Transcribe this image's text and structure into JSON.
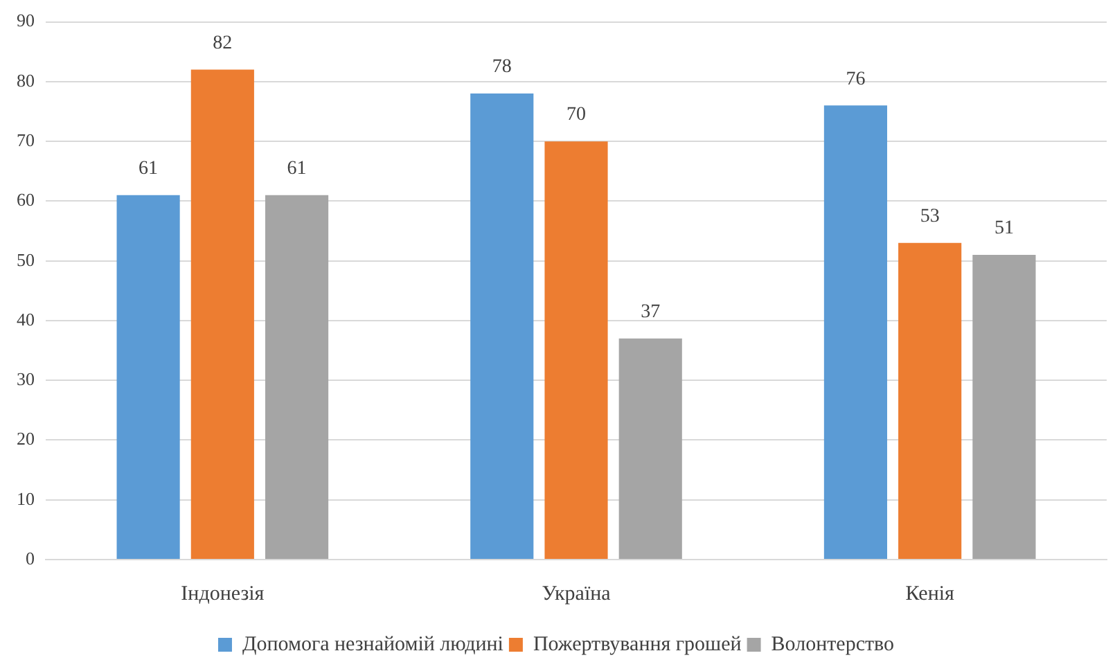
{
  "chart_data": {
    "type": "bar",
    "categories": [
      "Індонезія",
      "Україна",
      "Кенія"
    ],
    "series": [
      {
        "name": "Допомога незнайомій людині",
        "color": "#5b9bd5",
        "values": [
          61,
          78,
          76
        ]
      },
      {
        "name": "Пожертвування грошей",
        "color": "#ed7d31",
        "values": [
          82,
          70,
          53
        ]
      },
      {
        "name": "Волонтерство",
        "color": "#a5a5a5",
        "values": [
          61,
          37,
          51
        ]
      }
    ],
    "ylim": [
      0,
      90
    ],
    "yticks": [
      0,
      10,
      20,
      30,
      40,
      50,
      60,
      70,
      80,
      90
    ],
    "grid": "y",
    "legend": "bottom",
    "data_labels": true
  }
}
